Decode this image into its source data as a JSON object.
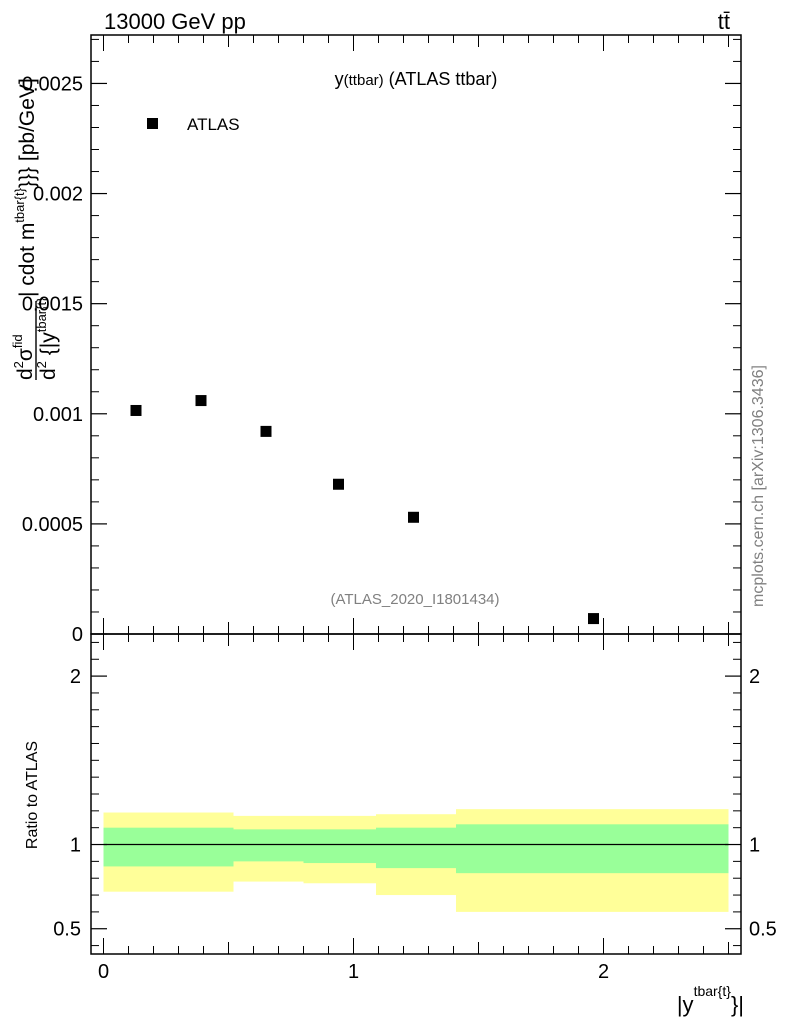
{
  "header": {
    "left": "13000 GeV pp",
    "right": "tt̄"
  },
  "side_label": "mcplots.cern.ch [arXiv:1306.3436]",
  "watermark": "(ATLAS_2020_I1801434)",
  "chart_data": [
    {
      "type": "scatter",
      "title": "y(ttbar) (ATLAS ttbar)",
      "title_main": "y",
      "title_sub": "(ttbar)",
      "title_rest": " (ATLAS ttbar)",
      "ylabel": "d²σ^fid / d² {|y^{tbar{t}}| cdot m^{tbar{t}}}} [pb/GeV]",
      "ylabel_parts": {
        "num": "d",
        "num_sup": "2",
        "sigma": "σ",
        "sigma_sup": "fid",
        "den": "d",
        "den_sup": "2",
        "den_rest": " {|y",
        "den_rest_sup": "tbar{t}",
        "after": "| cdot m",
        "after_sup": "tbar{t}",
        "end": "}}} [pb/GeV]"
      },
      "legend": {
        "position": "top-left",
        "entries": [
          "ATLAS"
        ]
      },
      "xlim": [
        -0.05,
        2.55
      ],
      "ylim": [
        0,
        0.00272
      ],
      "yticks": [
        0,
        0.0005,
        0.001,
        0.0015,
        0.002,
        0.0025
      ],
      "ytick_labels": [
        "0",
        "0.0005",
        "0.001",
        "0.0015",
        "0.002",
        "0.0025"
      ],
      "series": [
        {
          "name": "ATLAS",
          "marker": "square",
          "color": "#000000",
          "points": [
            {
              "x": 0.13,
              "y": 0.001015
            },
            {
              "x": 0.39,
              "y": 0.00106
            },
            {
              "x": 0.65,
              "y": 0.00092
            },
            {
              "x": 0.94,
              "y": 0.00068
            },
            {
              "x": 1.24,
              "y": 0.00053
            },
            {
              "x": 1.96,
              "y": 7e-05
            }
          ]
        }
      ]
    },
    {
      "type": "area",
      "ylabel": "Ratio to ATLAS",
      "xlabel": "|y^{tbar{t}}|",
      "xlabel_main": "|y",
      "xlabel_sup": "tbar{t}",
      "xlabel_end": "}|",
      "xlim": [
        -0.05,
        2.55
      ],
      "ylim": [
        0.35,
        2.25
      ],
      "xticks": [
        0,
        1,
        2
      ],
      "xtick_labels": [
        "0",
        "1",
        "2"
      ],
      "yticks": [
        0.5,
        1,
        2
      ],
      "ytick_labels": [
        "0.5",
        "1",
        "2"
      ],
      "reference_line": 1,
      "colors": {
        "inner_band": "#99ff99",
        "outer_band": "#ffff99"
      },
      "bins": [
        {
          "x0": 0.0,
          "x1": 0.52,
          "inner": [
            0.87,
            1.1
          ],
          "outer": [
            0.72,
            1.19
          ]
        },
        {
          "x0": 0.52,
          "x1": 0.8,
          "inner": [
            0.9,
            1.09
          ],
          "outer": [
            0.78,
            1.17
          ]
        },
        {
          "x0": 0.8,
          "x1": 1.09,
          "inner": [
            0.89,
            1.09
          ],
          "outer": [
            0.77,
            1.17
          ]
        },
        {
          "x0": 1.09,
          "x1": 1.41,
          "inner": [
            0.86,
            1.1
          ],
          "outer": [
            0.7,
            1.18
          ]
        },
        {
          "x0": 1.41,
          "x1": 2.5,
          "inner": [
            0.83,
            1.12
          ],
          "outer": [
            0.6,
            1.21
          ]
        }
      ]
    }
  ]
}
